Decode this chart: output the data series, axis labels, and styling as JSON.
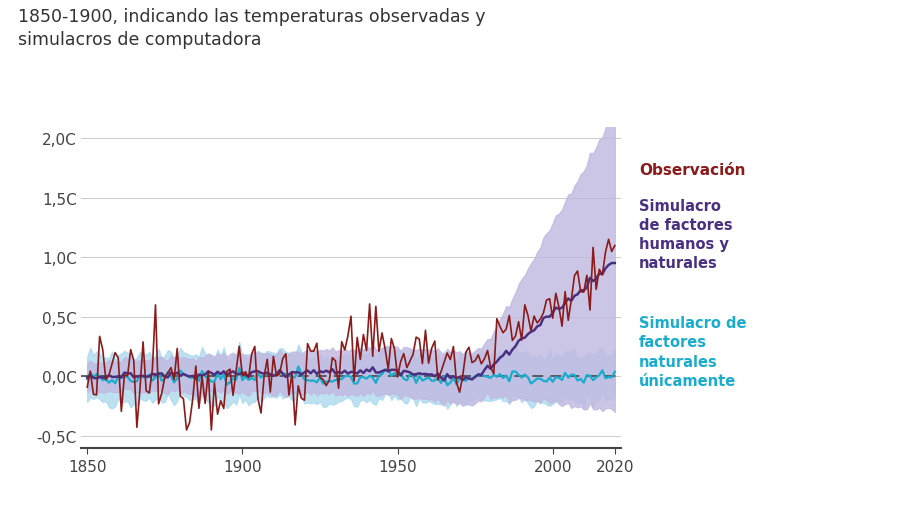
{
  "title_line1": "1850-1900, indicando las temperaturas observadas y",
  "title_line2": "simulacros de computadora",
  "title_fontsize": 12.5,
  "ylim": [
    -0.6,
    2.1
  ],
  "xlim": [
    1848,
    2022
  ],
  "yticks": [
    -0.5,
    0.0,
    0.5,
    1.0,
    1.5,
    2.0
  ],
  "ytick_labels": [
    "-0,5C",
    "0,0C",
    "0,5C",
    "1,0C",
    "1,5C",
    "2,0C"
  ],
  "xticks": [
    1850,
    1900,
    1950,
    2000,
    2020
  ],
  "background_color": "#ffffff",
  "obs_color": "#8b1a1a",
  "human_natural_color": "#4a3080",
  "natural_only_color": "#1aaccc",
  "human_natural_band_color": "#c0b8e0",
  "natural_only_band_color": "#a8d8ee",
  "legend_obs_label": "Observación",
  "legend_hn_label": "Simulacro\nde factores\nhumanos y\nnaturales",
  "legend_nat_label": "Simulacro de\nfactores\nnaturales\núnicamente",
  "grid_color": "#cccccc",
  "dashed_line_color": "#444444",
  "obs_fontsize": 11,
  "legend_fontsize": 10.5
}
